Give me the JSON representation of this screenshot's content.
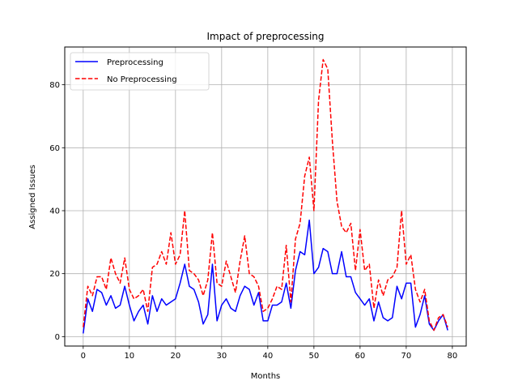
{
  "chart_data": {
    "type": "line",
    "title": "Impact of preprocessing",
    "xlabel": "Months",
    "ylabel": "Assigned Issues",
    "xlim": [
      -4,
      83
    ],
    "ylim": [
      -3,
      92
    ],
    "xticks": [
      0,
      10,
      20,
      30,
      40,
      50,
      60,
      70,
      80
    ],
    "yticks": [
      0,
      20,
      40,
      60,
      80
    ],
    "grid": true,
    "legend_position": "upper-left",
    "series": [
      {
        "name": "Preprocessing",
        "color": "#0000ff",
        "style": "solid",
        "values": [
          1,
          12,
          8,
          15,
          14,
          10,
          13,
          9,
          10,
          16,
          10,
          5,
          8,
          10,
          4,
          13,
          8,
          12,
          10,
          11,
          12,
          17,
          23,
          16,
          15,
          11,
          4,
          7,
          23,
          5,
          10,
          12,
          9,
          8,
          13,
          16,
          15,
          10,
          14,
          5,
          5,
          10,
          10,
          11,
          17,
          9,
          21,
          27,
          26,
          37,
          20,
          22,
          28,
          27,
          20,
          20,
          27,
          19,
          19,
          14,
          12,
          10,
          12,
          5,
          11,
          6,
          5,
          6,
          16,
          12,
          17,
          17,
          3,
          7,
          13,
          4,
          2,
          5,
          7,
          2
        ]
      },
      {
        "name": "No Preprocessing",
        "color": "#ff0000",
        "style": "dashed",
        "values": [
          3,
          16,
          13,
          19,
          19,
          15,
          25,
          20,
          17,
          25,
          15,
          12,
          13,
          15,
          8,
          22,
          23,
          27,
          23,
          33,
          23,
          26,
          40,
          21,
          20,
          18,
          13,
          18,
          33,
          17,
          16,
          24,
          19,
          14,
          24,
          32,
          20,
          19,
          16,
          8,
          9,
          12,
          16,
          15,
          29,
          11,
          31,
          36,
          51,
          57,
          40,
          75,
          88,
          85,
          62,
          43,
          35,
          33,
          36,
          21,
          34,
          21,
          23,
          9,
          18,
          13,
          18,
          19,
          22,
          40,
          23,
          26,
          15,
          11,
          15,
          5,
          2,
          6,
          7,
          3
        ]
      }
    ]
  }
}
